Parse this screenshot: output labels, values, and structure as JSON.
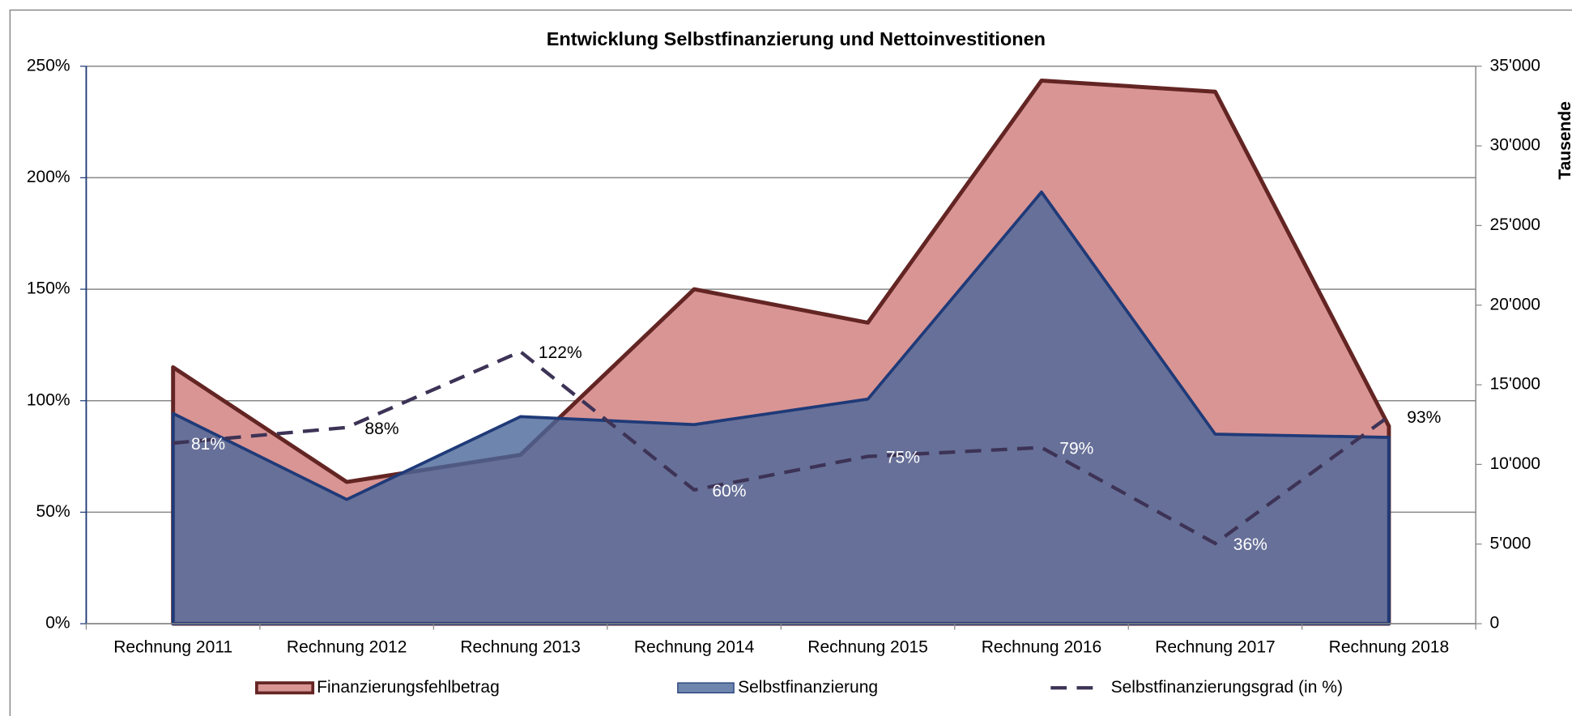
{
  "chart_data": {
    "type": "area",
    "title": "Entwicklung Selbstfinanzierung und Nettoinvestitionen",
    "y2label": "Tausende",
    "categories": [
      "Rechnung 2011",
      "Rechnung 2012",
      "Rechnung 2013",
      "Rechnung 2014",
      "Rechnung 2015",
      "Rechnung 2016",
      "Rechnung 2017",
      "Rechnung 2018"
    ],
    "series": [
      {
        "name": "Finanzierungsfehlbetrag",
        "type": "area",
        "axis": "y2",
        "color": "#d99594",
        "edge": "#632523",
        "values": [
          16100,
          8900,
          10600,
          21000,
          18900,
          34100,
          33400,
          12400
        ]
      },
      {
        "name": "Selbstfinanzierung",
        "type": "area",
        "axis": "y2",
        "color": "#4a6698",
        "edge": "#1f3a78",
        "values": [
          13200,
          7800,
          13000,
          12500,
          14100,
          27100,
          11900,
          11700
        ]
      },
      {
        "name": "Selbstfinanzierungsgrad (in %)",
        "type": "line",
        "axis": "y",
        "color": "#3d3356",
        "values": [
          81,
          88,
          122,
          60,
          75,
          79,
          36,
          93
        ],
        "value_labels": [
          "81%",
          "88%",
          "122%",
          "60%",
          "75%",
          "79%",
          "36%",
          "93%"
        ]
      }
    ],
    "ylim": [
      0,
      250
    ],
    "yticks": [
      {
        "value": 0,
        "label": "0%"
      },
      {
        "value": 50,
        "label": "50%"
      },
      {
        "value": 100,
        "label": "100%"
      },
      {
        "value": 150,
        "label": "150%"
      },
      {
        "value": 200,
        "label": "200%"
      },
      {
        "value": 250,
        "label": "250%"
      }
    ],
    "y2lim": [
      0,
      35000
    ],
    "y2ticks": [
      0,
      {
        "value": 5000,
        "label": "5'000"
      },
      {
        "value": 10000,
        "label": "10'000"
      },
      {
        "value": 15000,
        "label": "15'000"
      },
      {
        "value": 20000,
        "label": "20'000"
      },
      {
        "value": 25000,
        "label": "25'000"
      },
      {
        "value": 30000,
        "label": "30'000"
      },
      {
        "value": 35000,
        "label": "35'000"
      }
    ],
    "grid": true,
    "legend": "bottom"
  }
}
